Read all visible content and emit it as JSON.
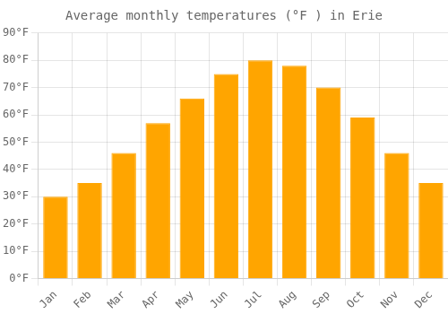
{
  "chart_data": {
    "type": "bar",
    "title": "Average monthly temperatures (°F ) in Erie",
    "categories": [
      "Jan",
      "Feb",
      "Mar",
      "Apr",
      "May",
      "Jun",
      "Jul",
      "Aug",
      "Sep",
      "Oct",
      "Nov",
      "Dec"
    ],
    "values": [
      30,
      35,
      46,
      57,
      66,
      75,
      80,
      78,
      70,
      59,
      46,
      35
    ],
    "color": "#FFA500",
    "ylim": [
      0,
      90
    ],
    "yticks": [
      {
        "value": 0,
        "label": "0°F"
      },
      {
        "value": 10,
        "label": "10°F"
      },
      {
        "value": 20,
        "label": "20°F"
      },
      {
        "value": 30,
        "label": "30°F"
      },
      {
        "value": 40,
        "label": "40°F"
      },
      {
        "value": 50,
        "label": "50°F"
      },
      {
        "value": 60,
        "label": "60°F"
      },
      {
        "value": 70,
        "label": "70°F"
      },
      {
        "value": 80,
        "label": "80°F"
      },
      {
        "value": 90,
        "label": "90°F"
      }
    ],
    "grid": true
  }
}
